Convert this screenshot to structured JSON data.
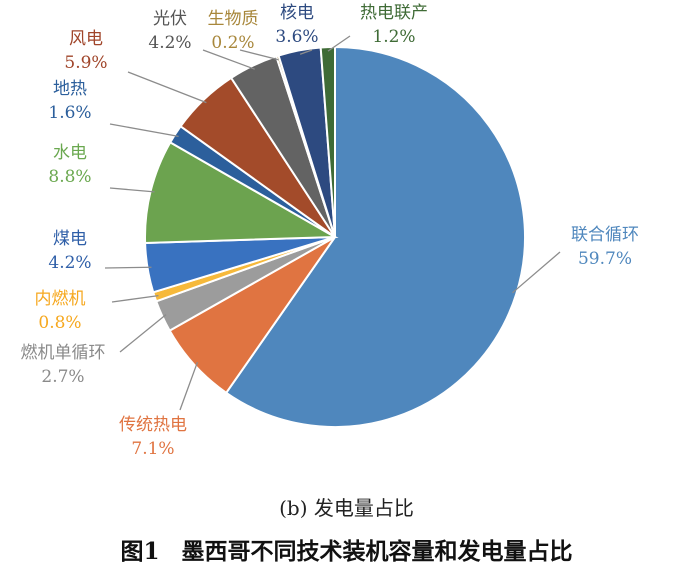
{
  "chart_data": {
    "type": "pie",
    "subtitle": "(b) 发电量占比",
    "slices": [
      {
        "label": "联合循环",
        "value": 59.7,
        "display": "59.7%",
        "color": "#4f87bd",
        "labelColor": "#4f87bd"
      },
      {
        "label": "传统热电",
        "value": 7.1,
        "display": "7.1%",
        "color": "#e07441",
        "labelColor": "#e07441"
      },
      {
        "label": "燃机单循环",
        "value": 2.7,
        "display": "2.7%",
        "color": "#9c9c9c",
        "labelColor": "#8a8a8a"
      },
      {
        "label": "内燃机",
        "value": 0.8,
        "display": "0.8%",
        "color": "#f6b93b",
        "labelColor": "#f6a81f"
      },
      {
        "label": "煤电",
        "value": 4.2,
        "display": "4.2%",
        "color": "#3972c0",
        "labelColor": "#2f5fa8"
      },
      {
        "label": "水电",
        "value": 8.8,
        "display": "8.8%",
        "color": "#6ca34f",
        "labelColor": "#6aa84f"
      },
      {
        "label": "地热",
        "value": 1.6,
        "display": "1.6%",
        "color": "#2c5f9c",
        "labelColor": "#2c5f9c"
      },
      {
        "label": "风电",
        "value": 5.9,
        "display": "5.9%",
        "color": "#a34b2a",
        "labelColor": "#a0452a"
      },
      {
        "label": "光伏",
        "value": 4.2,
        "display": "4.2%",
        "color": "#636363",
        "labelColor": "#555555"
      },
      {
        "label": "生物质",
        "value": 0.2,
        "display": "0.2%",
        "color": "#a8873b",
        "labelColor": "#a8873b"
      },
      {
        "label": "核电",
        "value": 3.6,
        "display": "3.6%",
        "color": "#2d4a80",
        "labelColor": "#2d4a80"
      },
      {
        "label": "热电联产",
        "value": 1.2,
        "display": "1.2%",
        "color": "#3f6b36",
        "labelColor": "#3f6b36"
      }
    ]
  },
  "caption": {
    "figure_label": "图1",
    "title": "墨西哥不同技术装机容量和发电量占比"
  }
}
